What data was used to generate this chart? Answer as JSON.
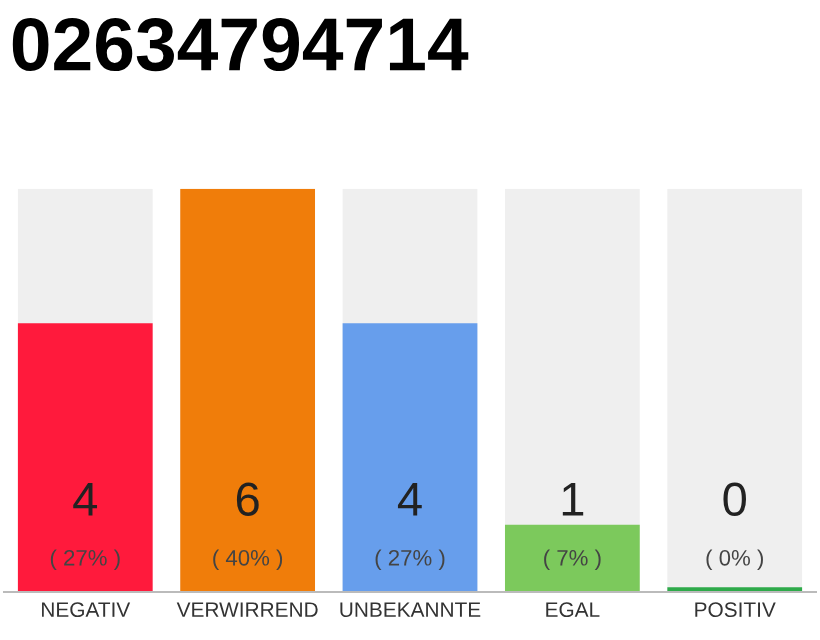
{
  "chart_data": {
    "type": "bar",
    "title": "02634794714",
    "categories": [
      "NEGATIV",
      "VERWIRREND",
      "UNBEKANNTE",
      "EGAL",
      "POSITIV"
    ],
    "values": [
      4,
      6,
      4,
      1,
      0
    ],
    "colors": [
      "#ff1a3c",
      "#f07d0a",
      "#679eec",
      "#7cc95c",
      "#2eaa4a"
    ],
    "ylim": [
      0,
      6
    ],
    "data_labels": true,
    "annotations": [
      {
        "text": "( 27% )",
        "x": "NEGATIV",
        "y": 0
      },
      {
        "text": "( 40% )",
        "x": "VERWIRREND",
        "y": 0
      },
      {
        "text": "( 27% )",
        "x": "UNBEKANNTE",
        "y": 0
      },
      {
        "text": "( 7% )",
        "x": "EGAL",
        "y": 0
      },
      {
        "text": "( 0% )",
        "x": "POSITIV",
        "y": 0
      }
    ],
    "tick_labels": "x",
    "grid": false,
    "legend": false
  }
}
